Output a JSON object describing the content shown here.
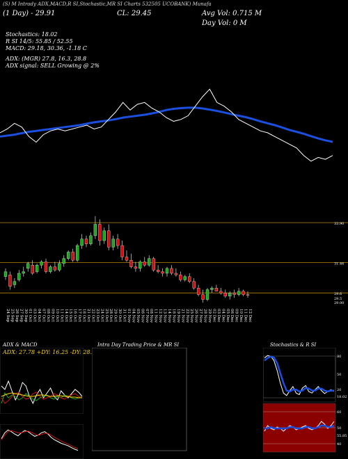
{
  "header": {
    "line1": "(S) M Intrady ADX,MACD,R SI,Stochastic,MR SI Charts 532505 UCOBANK) Munafa",
    "day_line": "(1 Day) - 29.91",
    "close_line": "CL: 29.45",
    "avg_vol": "Avg Vol: 0.715 M",
    "day_vol": "Day Vol: 0 M",
    "stochastics": "Stochastics: 18.02",
    "rsi": "R SI 14/5: 55.85 / 52.55",
    "macd": "MACD: 29.18, 30.36, -1.18 C",
    "adx": "ADX: (MGR) 27.8, 16.3, 28.8",
    "adx_signal": "ADX signal: SELL Growing @ 2%"
  },
  "colors": {
    "up": "#1aa81a",
    "down": "#d01010",
    "ema": "#1a4fe0",
    "price_line": "#ffffff",
    "level_line": "#b8860b",
    "stoch_bg": "#8b0000"
  },
  "chart_data": [
    {
      "type": "line",
      "name": "price-ema-overlay",
      "series": [
        {
          "values": [
            31.4,
            31.6,
            31.9,
            31.7,
            31.2,
            30.9,
            31.3,
            31.5,
            31.6,
            31.5,
            31.6,
            31.7,
            31.8,
            31.6,
            31.7,
            32.1,
            32.5,
            33.0,
            32.6,
            32.9,
            33.0,
            32.7,
            32.5,
            32.2,
            32.0,
            32.1,
            32.3,
            32.8,
            33.3,
            33.7,
            33.0,
            32.8,
            32.5,
            32.1,
            31.9,
            31.7,
            31.5,
            31.4,
            31.2,
            31.0,
            30.8,
            30.6,
            30.2,
            29.9,
            30.1,
            30.0,
            30.2
          ]
        },
        {
          "values": [
            31.2,
            31.25,
            31.3,
            31.38,
            31.45,
            31.5,
            31.55,
            31.6,
            31.65,
            31.7,
            31.75,
            31.8,
            31.88,
            31.95,
            32.0,
            32.05,
            32.12,
            32.2,
            32.25,
            32.3,
            32.35,
            32.42,
            32.5,
            32.6,
            32.66,
            32.7,
            32.72,
            32.72,
            32.68,
            32.62,
            32.55,
            32.47,
            32.38,
            32.3,
            32.22,
            32.12,
            32.0,
            31.9,
            31.8,
            31.68,
            31.55,
            31.45,
            31.35,
            31.22,
            31.1,
            31.0,
            30.92
          ]
        }
      ]
    },
    {
      "type": "candlestick",
      "name": "daily-candles",
      "levels": [
        33.9,
        31.46,
        29.6
      ],
      "level_labels": [
        "33.90",
        "31.46",
        "29.6"
      ],
      "extra_labels": [
        "29.5",
        "29.00"
      ],
      "ylim": [
        28.8,
        34.5
      ],
      "dates": [
        "24 Sep",
        "25 Sep",
        "26 Sep",
        "27 Sep",
        "30 Sep",
        "01 Oct",
        "03 Oct",
        "04 Oct",
        "07 Oct",
        "08 Oct",
        "09 Oct",
        "10 Oct",
        "11 Oct",
        "14 Oct",
        "15 Oct",
        "16 Oct",
        "17 Oct",
        "18 Oct",
        "21 Oct",
        "22 Oct",
        "23 Oct",
        "24 Oct",
        "25 Oct",
        "28 Oct",
        "29 Oct",
        "30 Oct",
        "31 Oct",
        "01 Nov",
        "04 Nov",
        "05 Nov",
        "06 Nov",
        "07 Nov",
        "08 Nov",
        "11 Nov",
        "12 Nov",
        "13 Nov",
        "14 Nov",
        "18 Nov",
        "19 Nov",
        "21 Nov",
        "22 Nov",
        "25 Nov",
        "26 Nov",
        "27 Nov",
        "28 Nov",
        "29 Nov",
        "02 Dec",
        "03 Dec",
        "04 Dec",
        "05 Dec",
        "06 Dec",
        "09 Dec",
        "10 Dec",
        "11 Dec",
        "12 Dec"
      ],
      "candles": [
        {
          "o": 30.6,
          "h": 31.1,
          "l": 30.4,
          "c": 30.9
        },
        {
          "o": 30.7,
          "h": 30.9,
          "l": 29.8,
          "c": 30.0
        },
        {
          "o": 30.1,
          "h": 30.5,
          "l": 29.9,
          "c": 30.3
        },
        {
          "o": 30.4,
          "h": 31.0,
          "l": 30.3,
          "c": 30.8
        },
        {
          "o": 30.8,
          "h": 31.2,
          "l": 30.6,
          "c": 30.9
        },
        {
          "o": 31.1,
          "h": 31.5,
          "l": 30.9,
          "c": 31.4
        },
        {
          "o": 31.3,
          "h": 31.6,
          "l": 30.7,
          "c": 30.8
        },
        {
          "o": 30.9,
          "h": 31.4,
          "l": 30.8,
          "c": 31.3
        },
        {
          "o": 31.3,
          "h": 31.6,
          "l": 31.1,
          "c": 31.5
        },
        {
          "o": 31.5,
          "h": 31.7,
          "l": 30.8,
          "c": 30.9
        },
        {
          "o": 30.9,
          "h": 31.3,
          "l": 30.8,
          "c": 31.2
        },
        {
          "o": 31.2,
          "h": 31.5,
          "l": 30.9,
          "c": 31.0
        },
        {
          "o": 31.0,
          "h": 31.6,
          "l": 30.9,
          "c": 31.4
        },
        {
          "o": 31.4,
          "h": 31.9,
          "l": 31.2,
          "c": 31.7
        },
        {
          "o": 31.7,
          "h": 32.2,
          "l": 31.6,
          "c": 32.1
        },
        {
          "o": 32.1,
          "h": 32.3,
          "l": 31.5,
          "c": 31.6
        },
        {
          "o": 31.6,
          "h": 32.6,
          "l": 31.5,
          "c": 32.5
        },
        {
          "o": 32.5,
          "h": 33.2,
          "l": 32.3,
          "c": 32.9
        },
        {
          "o": 32.9,
          "h": 33.1,
          "l": 32.4,
          "c": 32.6
        },
        {
          "o": 32.6,
          "h": 33.3,
          "l": 32.5,
          "c": 33.1
        },
        {
          "o": 33.1,
          "h": 34.3,
          "l": 32.9,
          "c": 33.8
        },
        {
          "o": 33.8,
          "h": 34.1,
          "l": 32.5,
          "c": 32.8
        },
        {
          "o": 32.8,
          "h": 33.6,
          "l": 32.6,
          "c": 33.4
        },
        {
          "o": 33.4,
          "h": 33.8,
          "l": 32.2,
          "c": 32.4
        },
        {
          "o": 32.4,
          "h": 33.1,
          "l": 32.2,
          "c": 32.9
        },
        {
          "o": 32.9,
          "h": 33.2,
          "l": 32.3,
          "c": 32.5
        },
        {
          "o": 32.5,
          "h": 32.8,
          "l": 31.6,
          "c": 31.8
        },
        {
          "o": 31.8,
          "h": 32.2,
          "l": 31.5,
          "c": 31.6
        },
        {
          "o": 31.6,
          "h": 32.0,
          "l": 31.1,
          "c": 31.2
        },
        {
          "o": 31.2,
          "h": 31.5,
          "l": 30.9,
          "c": 31.1
        },
        {
          "o": 31.1,
          "h": 31.6,
          "l": 30.9,
          "c": 31.5
        },
        {
          "o": 31.5,
          "h": 31.8,
          "l": 31.2,
          "c": 31.3
        },
        {
          "o": 31.3,
          "h": 31.9,
          "l": 31.2,
          "c": 31.7
        },
        {
          "o": 31.7,
          "h": 31.8,
          "l": 30.9,
          "c": 31.0
        },
        {
          "o": 31.0,
          "h": 31.3,
          "l": 30.8,
          "c": 30.9
        },
        {
          "o": 30.9,
          "h": 31.1,
          "l": 30.6,
          "c": 30.8
        },
        {
          "o": 30.8,
          "h": 31.2,
          "l": 30.6,
          "c": 31.1
        },
        {
          "o": 31.1,
          "h": 31.3,
          "l": 30.7,
          "c": 30.8
        },
        {
          "o": 30.8,
          "h": 31.1,
          "l": 30.6,
          "c": 30.7
        },
        {
          "o": 30.7,
          "h": 30.9,
          "l": 30.3,
          "c": 30.4
        },
        {
          "o": 30.4,
          "h": 30.7,
          "l": 30.3,
          "c": 30.6
        },
        {
          "o": 30.6,
          "h": 30.8,
          "l": 30.2,
          "c": 30.3
        },
        {
          "o": 30.3,
          "h": 30.5,
          "l": 29.8,
          "c": 29.9
        },
        {
          "o": 29.9,
          "h": 30.1,
          "l": 29.4,
          "c": 29.5
        },
        {
          "o": 29.5,
          "h": 29.8,
          "l": 29.0,
          "c": 29.2
        },
        {
          "o": 29.2,
          "h": 29.9,
          "l": 29.1,
          "c": 29.8
        },
        {
          "o": 29.8,
          "h": 30.0,
          "l": 29.6,
          "c": 29.9
        },
        {
          "o": 29.9,
          "h": 30.1,
          "l": 29.7,
          "c": 29.7
        },
        {
          "o": 29.7,
          "h": 29.9,
          "l": 29.5,
          "c": 29.6
        },
        {
          "o": 29.6,
          "h": 29.8,
          "l": 29.3,
          "c": 29.4
        },
        {
          "o": 29.4,
          "h": 29.7,
          "l": 29.2,
          "c": 29.6
        },
        {
          "o": 29.6,
          "h": 29.8,
          "l": 29.3,
          "c": 29.5
        },
        {
          "o": 29.5,
          "h": 29.9,
          "l": 29.4,
          "c": 29.7
        },
        {
          "o": 29.7,
          "h": 29.8,
          "l": 29.4,
          "c": 29.5
        },
        {
          "o": 29.5,
          "h": 29.7,
          "l": 29.3,
          "c": 29.45
        }
      ]
    },
    {
      "type": "line",
      "name": "adx-panel",
      "title": "ADX & MACD",
      "readout": "ADX: 27.78 +DY: 16.25 -DY: 28.75",
      "series": [
        {
          "color": "#ffffff",
          "values": [
            55,
            50,
            62,
            48,
            35,
            45,
            60,
            55,
            40,
            30,
            42,
            50,
            38,
            45,
            52,
            40,
            35,
            48,
            42,
            38,
            44,
            50,
            46,
            40
          ]
        },
        {
          "color": "#1aa81a",
          "values": [
            30,
            45,
            38,
            42,
            40,
            35,
            38,
            44,
            40,
            36,
            34,
            38,
            40,
            42,
            38,
            36,
            40,
            38,
            42,
            40,
            38,
            36,
            38,
            40
          ]
        },
        {
          "color": "#d01010",
          "values": [
            38,
            30,
            34,
            40,
            44,
            46,
            40,
            36,
            38,
            44,
            46,
            40,
            36,
            38,
            40,
            44,
            42,
            38,
            36,
            40,
            42,
            44,
            40,
            38
          ]
        },
        {
          "color": "#ffd700",
          "values": [
            40,
            42,
            44,
            45,
            44,
            43,
            42,
            41,
            40,
            40,
            41,
            42,
            42,
            41,
            40,
            40,
            41,
            41,
            40,
            40,
            39,
            39,
            38,
            38
          ]
        }
      ]
    },
    {
      "type": "line",
      "name": "macd-panel",
      "series": [
        {
          "color": "#ffffff",
          "values": [
            60,
            70,
            75,
            72,
            68,
            65,
            70,
            74,
            72,
            68,
            64,
            66,
            70,
            72,
            68,
            62,
            58,
            55,
            52,
            50,
            48,
            45,
            42,
            40
          ]
        },
        {
          "color": "#d01010",
          "values": [
            58,
            66,
            72,
            74,
            72,
            70,
            70,
            72,
            73,
            71,
            68,
            66,
            67,
            69,
            69,
            66,
            62,
            59,
            56,
            53,
            51,
            48,
            45,
            43
          ]
        }
      ]
    },
    {
      "type": "line",
      "name": "intraday-panel",
      "title": "Intra Day Trading Price & MR SI",
      "series": []
    },
    {
      "type": "line",
      "name": "stochastics-panel",
      "title": "Stochastics & R SI",
      "tick_labels": [
        "80",
        "50",
        "20",
        "18.02"
      ],
      "series": [
        {
          "color": "#ffffff",
          "values": [
            85,
            90,
            88,
            80,
            60,
            35,
            15,
            10,
            20,
            28,
            15,
            12,
            25,
            30,
            18,
            15,
            22,
            28,
            20,
            14,
            18,
            22,
            18
          ]
        },
        {
          "color": "#1a4fe0",
          "values": [
            80,
            85,
            88,
            86,
            75,
            55,
            35,
            20,
            18,
            22,
            22,
            18,
            20,
            25,
            24,
            20,
            20,
            24,
            24,
            20,
            18,
            20,
            20
          ]
        }
      ]
    },
    {
      "type": "line",
      "name": "rsi-panel",
      "tick_labels": [
        "60",
        "50",
        "40",
        "55.85"
      ],
      "series": [
        {
          "color": "#ffffff",
          "values": [
            48,
            52,
            50,
            49,
            51,
            50,
            48,
            50,
            52,
            51,
            49,
            50,
            51,
            52,
            50,
            49,
            50,
            52,
            55,
            53,
            50,
            52,
            55
          ]
        },
        {
          "color": "#1a4fe0",
          "values": [
            50,
            50,
            51,
            50,
            50,
            50,
            50,
            50,
            51,
            51,
            50,
            50,
            50,
            51,
            51,
            50,
            50,
            51,
            52,
            52,
            51,
            51,
            52
          ]
        }
      ]
    }
  ]
}
